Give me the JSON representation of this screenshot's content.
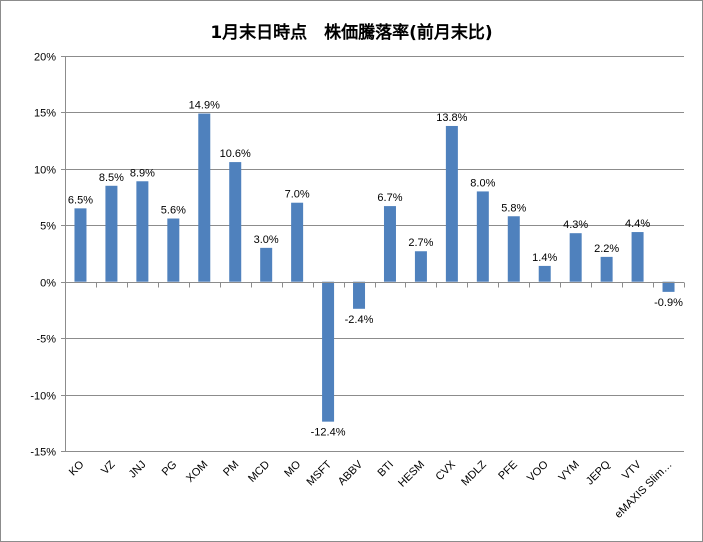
{
  "chart_data": {
    "type": "bar",
    "title": "1月末日時点　株価騰落率(前月末比)",
    "xlabel": "",
    "ylabel": "",
    "ylim": [
      -15,
      20
    ],
    "yticks": [
      20,
      15,
      10,
      5,
      0,
      -5,
      -10,
      -15
    ],
    "ytick_labels": [
      "20%",
      "15%",
      "10%",
      "5%",
      "0%",
      "-5%",
      "-10%",
      "-15%"
    ],
    "grid": true,
    "legend": "none",
    "bar_color": "#4f81bd",
    "categories": [
      "KO",
      "VZ",
      "JNJ",
      "PG",
      "XOM",
      "PM",
      "MCD",
      "MO",
      "MSFT",
      "ABBV",
      "BTI",
      "HESM",
      "CVX",
      "MDLZ",
      "PFE",
      "VOO",
      "VYM",
      "JEPQ",
      "VTV",
      "eMAXIS Slim…"
    ],
    "values": [
      6.5,
      8.5,
      8.9,
      5.6,
      14.9,
      10.6,
      3.0,
      7.0,
      -12.4,
      -2.4,
      6.7,
      2.7,
      13.8,
      8.0,
      5.8,
      1.4,
      4.3,
      2.2,
      4.4,
      -0.9
    ],
    "data_labels": [
      "6.5%",
      "8.5%",
      "8.9%",
      "5.6%",
      "14.9%",
      "10.6%",
      "3.0%",
      "7.0%",
      "-12.4%",
      "-2.4%",
      "6.7%",
      "2.7%",
      "13.8%",
      "8.0%",
      "5.8%",
      "1.4%",
      "4.3%",
      "2.2%",
      "4.4%",
      "-0.9%"
    ]
  }
}
